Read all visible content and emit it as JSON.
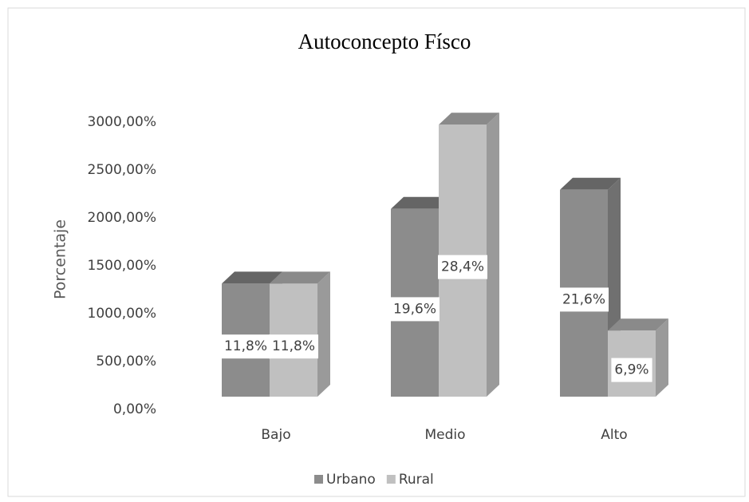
{
  "chart_data": {
    "type": "bar3d",
    "title": "Autoconcepto  Físco",
    "y_label": "Porcentaje",
    "categories": [
      "Bajo",
      "Medio",
      "Alto"
    ],
    "series": [
      {
        "name": "Urbano",
        "color": "#8c8c8c",
        "values": [
          1180,
          1960,
          2160
        ],
        "value_labels": [
          "11,8%",
          "19,6%",
          "21,6%"
        ]
      },
      {
        "name": "Rural",
        "color": "#c0c0c0",
        "values": [
          1180,
          2840,
          690
        ],
        "value_labels": [
          "11,8%",
          "28,4%",
          "6,9%"
        ]
      }
    ],
    "ylim": [
      0,
      3000
    ],
    "yticks": [
      {
        "value": 0,
        "label": "0,00%"
      },
      {
        "value": 500,
        "label": "500,00%"
      },
      {
        "value": 1000,
        "label": "1000,00%"
      },
      {
        "value": 1500,
        "label": "1500,00%"
      },
      {
        "value": 2000,
        "label": "2000,00%"
      },
      {
        "value": 2500,
        "label": "2500,00%"
      },
      {
        "value": 3000,
        "label": "3000,00%"
      }
    ],
    "legend": "bottom"
  }
}
